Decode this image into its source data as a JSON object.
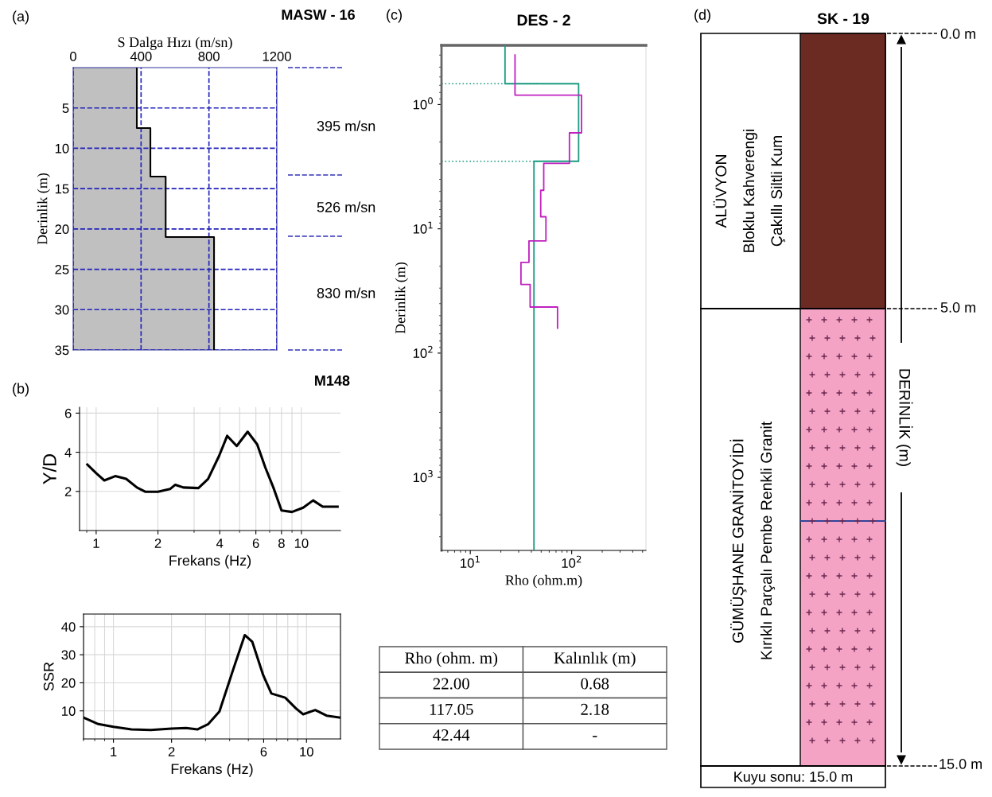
{
  "chart_data": [
    {
      "type": "area",
      "orientation": "horizontal",
      "title": "MASW - 16",
      "xlabel": "S Dalga Hızı (m/sn)",
      "ylabel": "Derinlik (m)",
      "x": [
        0,
        7.5,
        7.5,
        13.5,
        13.5,
        21,
        21,
        35
      ],
      "values": [
        375,
        375,
        455,
        455,
        545,
        545,
        830,
        830
      ],
      "color": "#000000",
      "xlim": [
        0,
        1200
      ],
      "xticks": [
        0,
        400,
        800,
        1200
      ],
      "ylim": [
        35,
        0
      ],
      "yticks": [
        5,
        10,
        15,
        20,
        25,
        30,
        35
      ],
      "grid": true,
      "annotations": [
        "(a)",
        "395 m/sn",
        "526 m/sn",
        "830 m/sn"
      ]
    },
    {
      "type": "line",
      "title": "M148",
      "xlabel": "Frekans (Hz)",
      "ylabel": "Y/D",
      "log": "x",
      "grid": true,
      "color": "#000000",
      "x": [
        0.906,
        1.0,
        1.096,
        1.239,
        1.4,
        1.58,
        1.74,
        2.0,
        2.29,
        2.43,
        2.66,
        3.15,
        3.51,
        3.97,
        4.35,
        4.84,
        5.47,
        6.09,
        6.67,
        7.3,
        8.0,
        9.0,
        10.2,
        11.4,
        12.7,
        15.0
      ],
      "values": [
        3.37,
        2.93,
        2.56,
        2.78,
        2.64,
        2.2,
        1.98,
        1.98,
        2.12,
        2.34,
        2.2,
        2.17,
        2.64,
        3.81,
        4.84,
        4.32,
        5.05,
        4.4,
        3.22,
        2.2,
        1.03,
        0.95,
        1.17,
        1.54,
        1.22,
        1.22
      ],
      "xlim": [
        0.83,
        15.5
      ],
      "xticks": [
        1,
        2,
        4,
        6,
        8,
        10
      ],
      "ylim": [
        0,
        6.3
      ],
      "yticks": [
        2,
        4,
        6
      ],
      "annotations": [
        "(b)"
      ]
    },
    {
      "type": "line",
      "xlabel": "Frekans (Hz)",
      "ylabel": "SSR",
      "log": "x",
      "grid": true,
      "color": "#000000",
      "x": [
        0.7,
        0.835,
        1.0,
        1.24,
        1.56,
        2.0,
        2.38,
        2.72,
        3.1,
        3.54,
        4.17,
        4.79,
        5.24,
        5.97,
        6.58,
        7.76,
        8.84,
        9.61,
        11.1,
        12.7,
        15.0
      ],
      "values": [
        7.6,
        5.3,
        4.3,
        3.4,
        3.2,
        3.7,
        3.9,
        3.4,
        5.3,
        9.8,
        24.7,
        37.0,
        34.6,
        22.7,
        16.2,
        14.7,
        10.8,
        8.8,
        10.3,
        8.3,
        7.6
      ],
      "xlim": [
        0.7,
        15
      ],
      "xticks": [
        1,
        2,
        6,
        10
      ],
      "ylim": [
        0,
        44.5
      ],
      "yticks": [
        10,
        20,
        30,
        40
      ]
    },
    {
      "type": "step",
      "orientation": "horizontal",
      "title": "DES - 2",
      "xlabel": "Rho (ohm.m)",
      "ylabel": "Derinlik (m)",
      "log": "xy",
      "series": [
        {
          "color": "#1a9a80",
          "x": [
            0.334,
            0.68,
            2.86,
            3870
          ],
          "values": [
            22,
            117.05,
            42.44,
            42.44
          ]
        },
        {
          "color": "#c020c0",
          "x": [
            0.4,
            0.84,
            1.69,
            2.97,
            4.9,
            8.0,
            12.5,
            18.6,
            28,
            42.6,
            63
          ],
          "values": [
            27.6,
            125,
            95,
            53,
            49.5,
            55.7,
            37.9,
            31.6,
            38.9,
            72.5,
            72.5
          ]
        }
      ],
      "xlim": [
        5.2,
        540
      ],
      "xticks": [
        {
          "value": 10,
          "label": "10$^{1}$"
        },
        {
          "value": 100,
          "label": "10$^{2}$"
        }
      ],
      "ylim": [
        3870,
        0.334
      ],
      "yticks": [
        {
          "value": 1,
          "label": "10$^{0}$"
        },
        {
          "value": 10,
          "label": "10$^{1}$"
        },
        {
          "value": 100,
          "label": "10$^{2}$"
        },
        {
          "value": 1000,
          "label": "10$^{3}$"
        }
      ],
      "ref_lines": [
        {
          "axis": "y",
          "value": 0.68,
          "color": "#1a9a80",
          "line_style": "dotted"
        },
        {
          "axis": "y",
          "value": 2.86,
          "color": "#1a9a80",
          "line_style": "dotted"
        }
      ],
      "annotations": [
        "(c)"
      ]
    },
    {
      "type": "other",
      "annotations": [
        "Rho (ohm. m)",
        "Kalınlık (m)",
        "22.00",
        "0.68",
        "117.05",
        "2.18",
        "42.44",
        "-"
      ]
    },
    {
      "type": "other",
      "title": "SK - 19",
      "annotations": [
        "(d)",
        "ALÜVYON",
        "Bloklu Kahverengi",
        "Çakıllı Siltli Kum",
        "GÜMÜŞHANE GRANİTOYİDİ",
        "Kırıklı Parçalı Pembe Renkli Granit",
        "0.0 m",
        "5.0 m",
        "15.0 m",
        "DERİNLİK (m)",
        "Kuyu sonu: 15.0 m"
      ]
    }
  ]
}
